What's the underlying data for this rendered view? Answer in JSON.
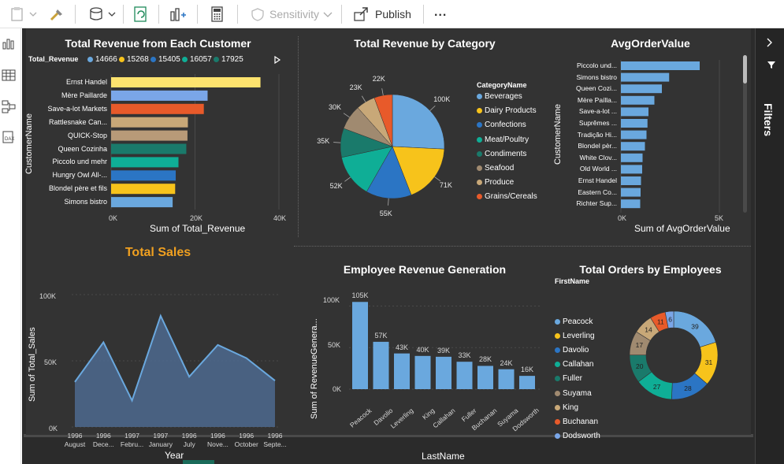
{
  "toolbar": {
    "sensitivity_label": "Sensitivity",
    "publish_label": "Publish",
    "more_label": "..."
  },
  "filters_pane": {
    "label": "Filters"
  },
  "colors": {
    "blue": "#6aa8de",
    "yellow": "#f7c31b",
    "darkblue": "#2b75c4",
    "teal": "#0fae96",
    "darkteal": "#1a7a6b",
    "tan": "#a08a70",
    "sand": "#c8a878",
    "orange": "#e85a2a",
    "lightyellow": "#fde36e",
    "lightblue": "#7aa6e8",
    "brown": "#b89a78"
  },
  "revenue_by_customer": {
    "title": "Total Revenue from Each Customer",
    "legend_title": "Total_Revenue",
    "legend_items": [
      {
        "label": "14666",
        "color": "#6aa8de"
      },
      {
        "label": "15268",
        "color": "#f7c31b"
      },
      {
        "label": "15405",
        "color": "#2b75c4"
      },
      {
        "label": "16057",
        "color": "#0fae96"
      },
      {
        "label": "17925",
        "color": "#1a7a6b"
      }
    ],
    "xlabel": "Sum of Total_Revenue",
    "ylabel": "CustomerName",
    "ticks": [
      "0K",
      "20K",
      "40K"
    ]
  },
  "revenue_by_category": {
    "title": "Total Revenue by Category",
    "legend_title": "CategoryName",
    "legend_items": [
      {
        "label": "Beverages",
        "color": "#6aa8de"
      },
      {
        "label": "Dairy Products",
        "color": "#f7c31b"
      },
      {
        "label": "Confections",
        "color": "#2b75c4"
      },
      {
        "label": "Meat/Poultry",
        "color": "#0fae96"
      },
      {
        "label": "Condiments",
        "color": "#1a7a6b"
      },
      {
        "label": "Seafood",
        "color": "#a08a70"
      },
      {
        "label": "Produce",
        "color": "#c8a878"
      },
      {
        "label": "Grains/Cereals",
        "color": "#e85a2a"
      }
    ]
  },
  "avg_order_value": {
    "title": "AvgOrderValue",
    "xlabel": "Sum of AvgOrderValue",
    "ylabel": "CustomerName",
    "ticks": [
      "0K",
      "5K"
    ]
  },
  "total_sales": {
    "title": "Total Sales",
    "xlabel": "Year",
    "ylabel": "Sum of Total_Sales",
    "ticks": [
      "100K",
      "50K",
      "0K"
    ]
  },
  "employee_revenue": {
    "title": "Employee Revenue Generation",
    "xlabel": "LastName",
    "ylabel": "Sum of RevenueGenera...",
    "ticks": [
      "100K",
      "50K",
      "0K"
    ]
  },
  "orders_by_employee": {
    "title": "Total Orders by Employees",
    "legend_title": "FirstName",
    "legend_items": [
      {
        "label": "Peacock",
        "color": "#6aa8de"
      },
      {
        "label": "Leverling",
        "color": "#f7c31b"
      },
      {
        "label": "Davolio",
        "color": "#2b75c4"
      },
      {
        "label": "Callahan",
        "color": "#0fae96"
      },
      {
        "label": "Fuller",
        "color": "#1a7a6b"
      },
      {
        "label": "Suyama",
        "color": "#a08a70"
      },
      {
        "label": "King",
        "color": "#c8a878"
      },
      {
        "label": "Buchanan",
        "color": "#e85a2a"
      },
      {
        "label": "Dodsworth",
        "color": "#7aa6e8"
      }
    ]
  },
  "chart_data": [
    {
      "type": "bar",
      "orientation": "horizontal",
      "title": "Total Revenue from Each Customer",
      "xlabel": "Sum of Total_Revenue",
      "ylabel": "CustomerName",
      "xlim": [
        0,
        40000
      ],
      "categories": [
        "Ernst Handel",
        "Mère Paillarde",
        "Save-a-lot Markets",
        "Rattlesnake Can...",
        "QUICK-Stop",
        "Queen Cozinha",
        "Piccolo und mehr",
        "Hungry Owl All-...",
        "Blondel père et fils",
        "Simons bistro"
      ],
      "values": [
        35600,
        23000,
        22100,
        18300,
        18200,
        17925,
        16057,
        15405,
        15268,
        14666
      ],
      "colors": [
        "#fde36e",
        "#7aa6e8",
        "#e85a2a",
        "#c8a878",
        "#b89a78",
        "#1a7a6b",
        "#0fae96",
        "#2b75c4",
        "#f7c31b",
        "#6aa8de"
      ]
    },
    {
      "type": "pie",
      "title": "Total Revenue by Category",
      "categories": [
        "Beverages",
        "Dairy Products",
        "Confections",
        "Meat/Poultry",
        "Condiments",
        "Seafood",
        "Produce",
        "Grains/Cereals"
      ],
      "values": [
        100000,
        71000,
        55000,
        52000,
        35000,
        30000,
        23000,
        22000
      ],
      "labels": [
        "100K",
        "71K",
        "55K",
        "52K",
        "35K",
        "30K",
        "23K",
        "22K"
      ],
      "colors": [
        "#6aa8de",
        "#f7c31b",
        "#2b75c4",
        "#0fae96",
        "#1a7a6b",
        "#a08a70",
        "#c8a878",
        "#e85a2a"
      ]
    },
    {
      "type": "bar",
      "orientation": "horizontal",
      "title": "AvgOrderValue",
      "xlabel": "Sum of AvgOrderValue",
      "ylabel": "CustomerName",
      "xlim": [
        0,
        5000
      ],
      "categories": [
        "Piccolo und...",
        "Simons bistro",
        "Queen Cozi...",
        "Mère Paílla...",
        "Save-a-lot ...",
        "Suprêmes ...",
        "Tradição Hi...",
        "Blondel pèr...",
        "White Clov...",
        "Old World ...",
        "Ernst Handel",
        "Eastern Co...",
        "Richter Sup..."
      ],
      "values": [
        4000,
        2450,
        2080,
        1700,
        1400,
        1350,
        1300,
        1220,
        1100,
        1080,
        1020,
        1000,
        980
      ],
      "color": "#6aa8de"
    },
    {
      "type": "area",
      "title": "Total Sales",
      "xlabel": "Year",
      "ylabel": "Sum of Total_Sales",
      "ylim": [
        0,
        100000
      ],
      "categories": [
        "1996 August",
        "1996 Dece...",
        "1997 Febru...",
        "1997 January",
        "1996 July",
        "1996 Nove...",
        "1996 October",
        "1996 Septe..."
      ],
      "values": [
        34000,
        64000,
        20000,
        84000,
        38000,
        62000,
        52000,
        35000
      ],
      "color": "#5b7fa8"
    },
    {
      "type": "bar",
      "title": "Employee Revenue Generation",
      "xlabel": "LastName",
      "ylabel": "Sum of RevenueGenera...",
      "ylim": [
        0,
        110000
      ],
      "categories": [
        "Peacock",
        "Davolio",
        "Leverling",
        "King",
        "Callahan",
        "Fuller",
        "Buchanan",
        "Suyama",
        "Dodsworth"
      ],
      "values": [
        105000,
        57000,
        43000,
        40000,
        39000,
        33000,
        28000,
        24000,
        16000
      ],
      "labels": [
        "105K",
        "57K",
        "43K",
        "40K",
        "39K",
        "33K",
        "28K",
        "24K",
        "16K"
      ],
      "color": "#6aa8de"
    },
    {
      "type": "pie",
      "variant": "donut",
      "title": "Total Orders by Employees",
      "categories": [
        "Peacock",
        "Leverling",
        "Davolio",
        "Callahan",
        "Fuller",
        "Suyama",
        "King",
        "Buchanan",
        "Dodsworth"
      ],
      "values": [
        39,
        31,
        28,
        27,
        20,
        17,
        14,
        11,
        6
      ],
      "colors": [
        "#6aa8de",
        "#f7c31b",
        "#2b75c4",
        "#0fae96",
        "#1a7a6b",
        "#a08a70",
        "#c8a878",
        "#e85a2a",
        "#7aa6e8"
      ]
    }
  ]
}
